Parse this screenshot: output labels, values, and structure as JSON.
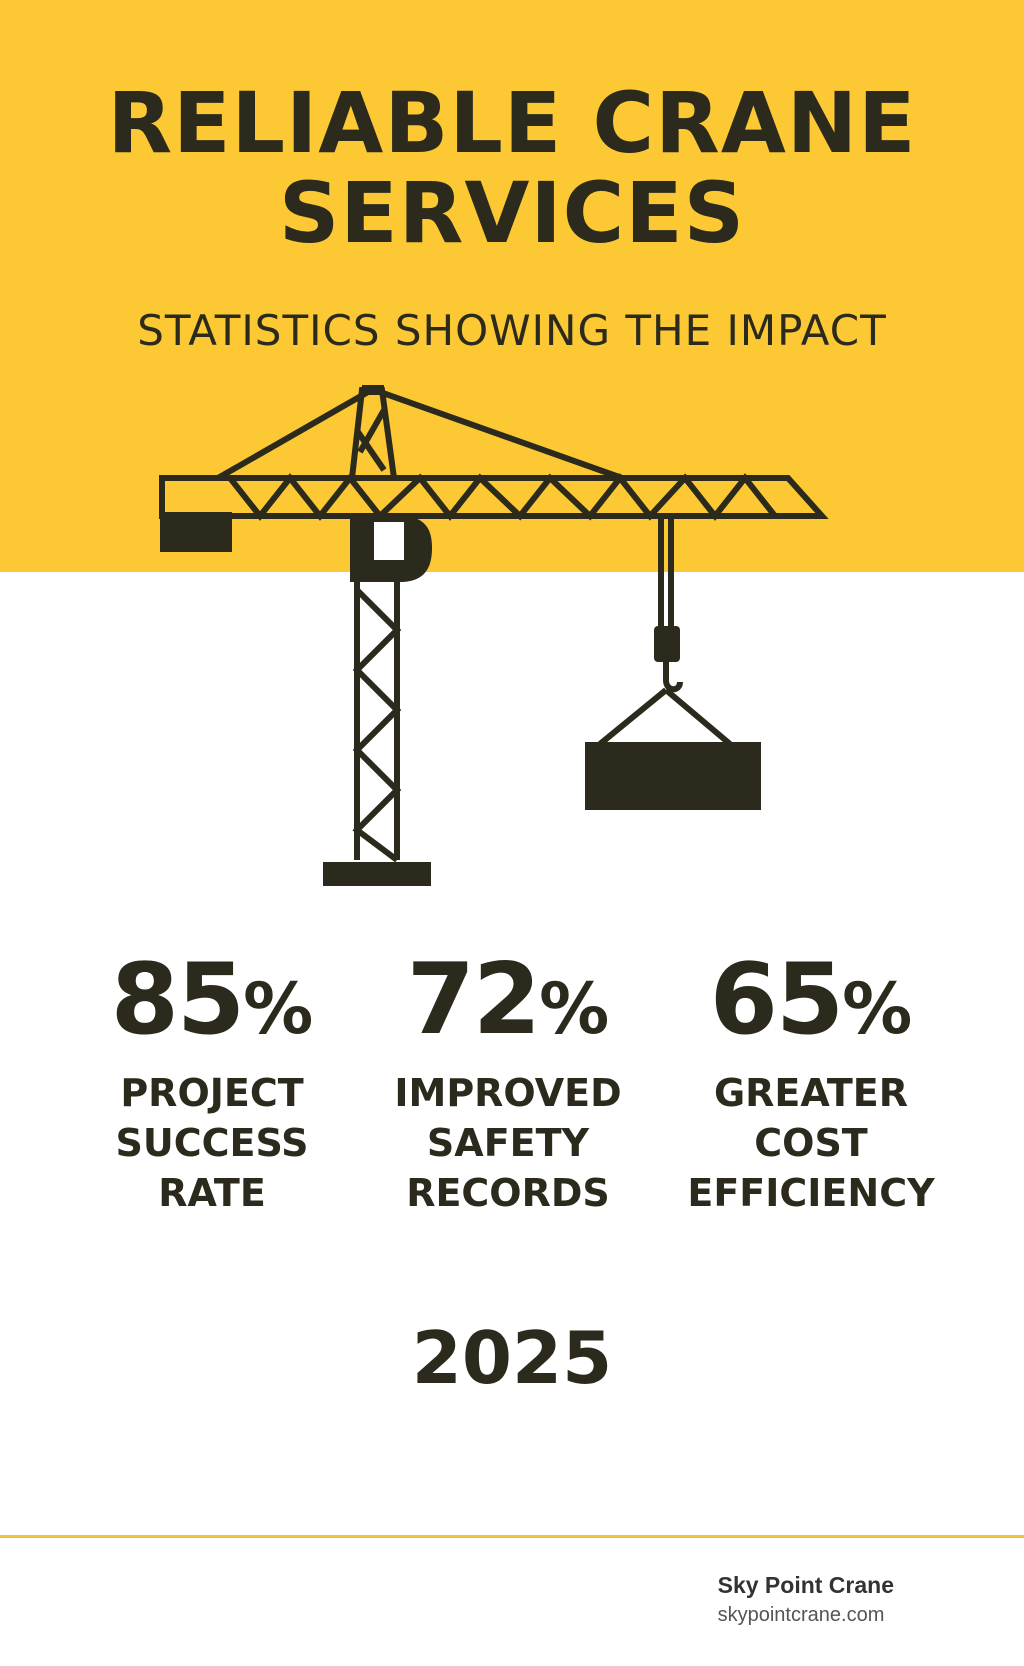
{
  "header": {
    "title_line_1": "RELIABLE CRANE",
    "title_line_2": "SERVICES",
    "subtitle": "STATISTICS SHOWING THE IMPACT"
  },
  "illustration": {
    "icon": "tower-crane-icon"
  },
  "stats": [
    {
      "value": "85",
      "unit": "%",
      "label_lines": [
        "PROJECT",
        "SUCCESS",
        "RATE"
      ]
    },
    {
      "value": "72",
      "unit": "%",
      "label_lines": [
        "IMPROVED",
        "SAFETY",
        "RECORDS"
      ]
    },
    {
      "value": "65",
      "unit": "%",
      "label_lines": [
        "GREATER",
        "COST",
        "EFFICIENCY"
      ]
    }
  ],
  "year": "2025",
  "footer": {
    "brand_name": "Sky Point Crane",
    "brand_url": "skypointcrane.com"
  },
  "colors": {
    "accent_yellow": "#fcc934",
    "ink": "#2b2a1c",
    "rule": "#f2c231"
  }
}
